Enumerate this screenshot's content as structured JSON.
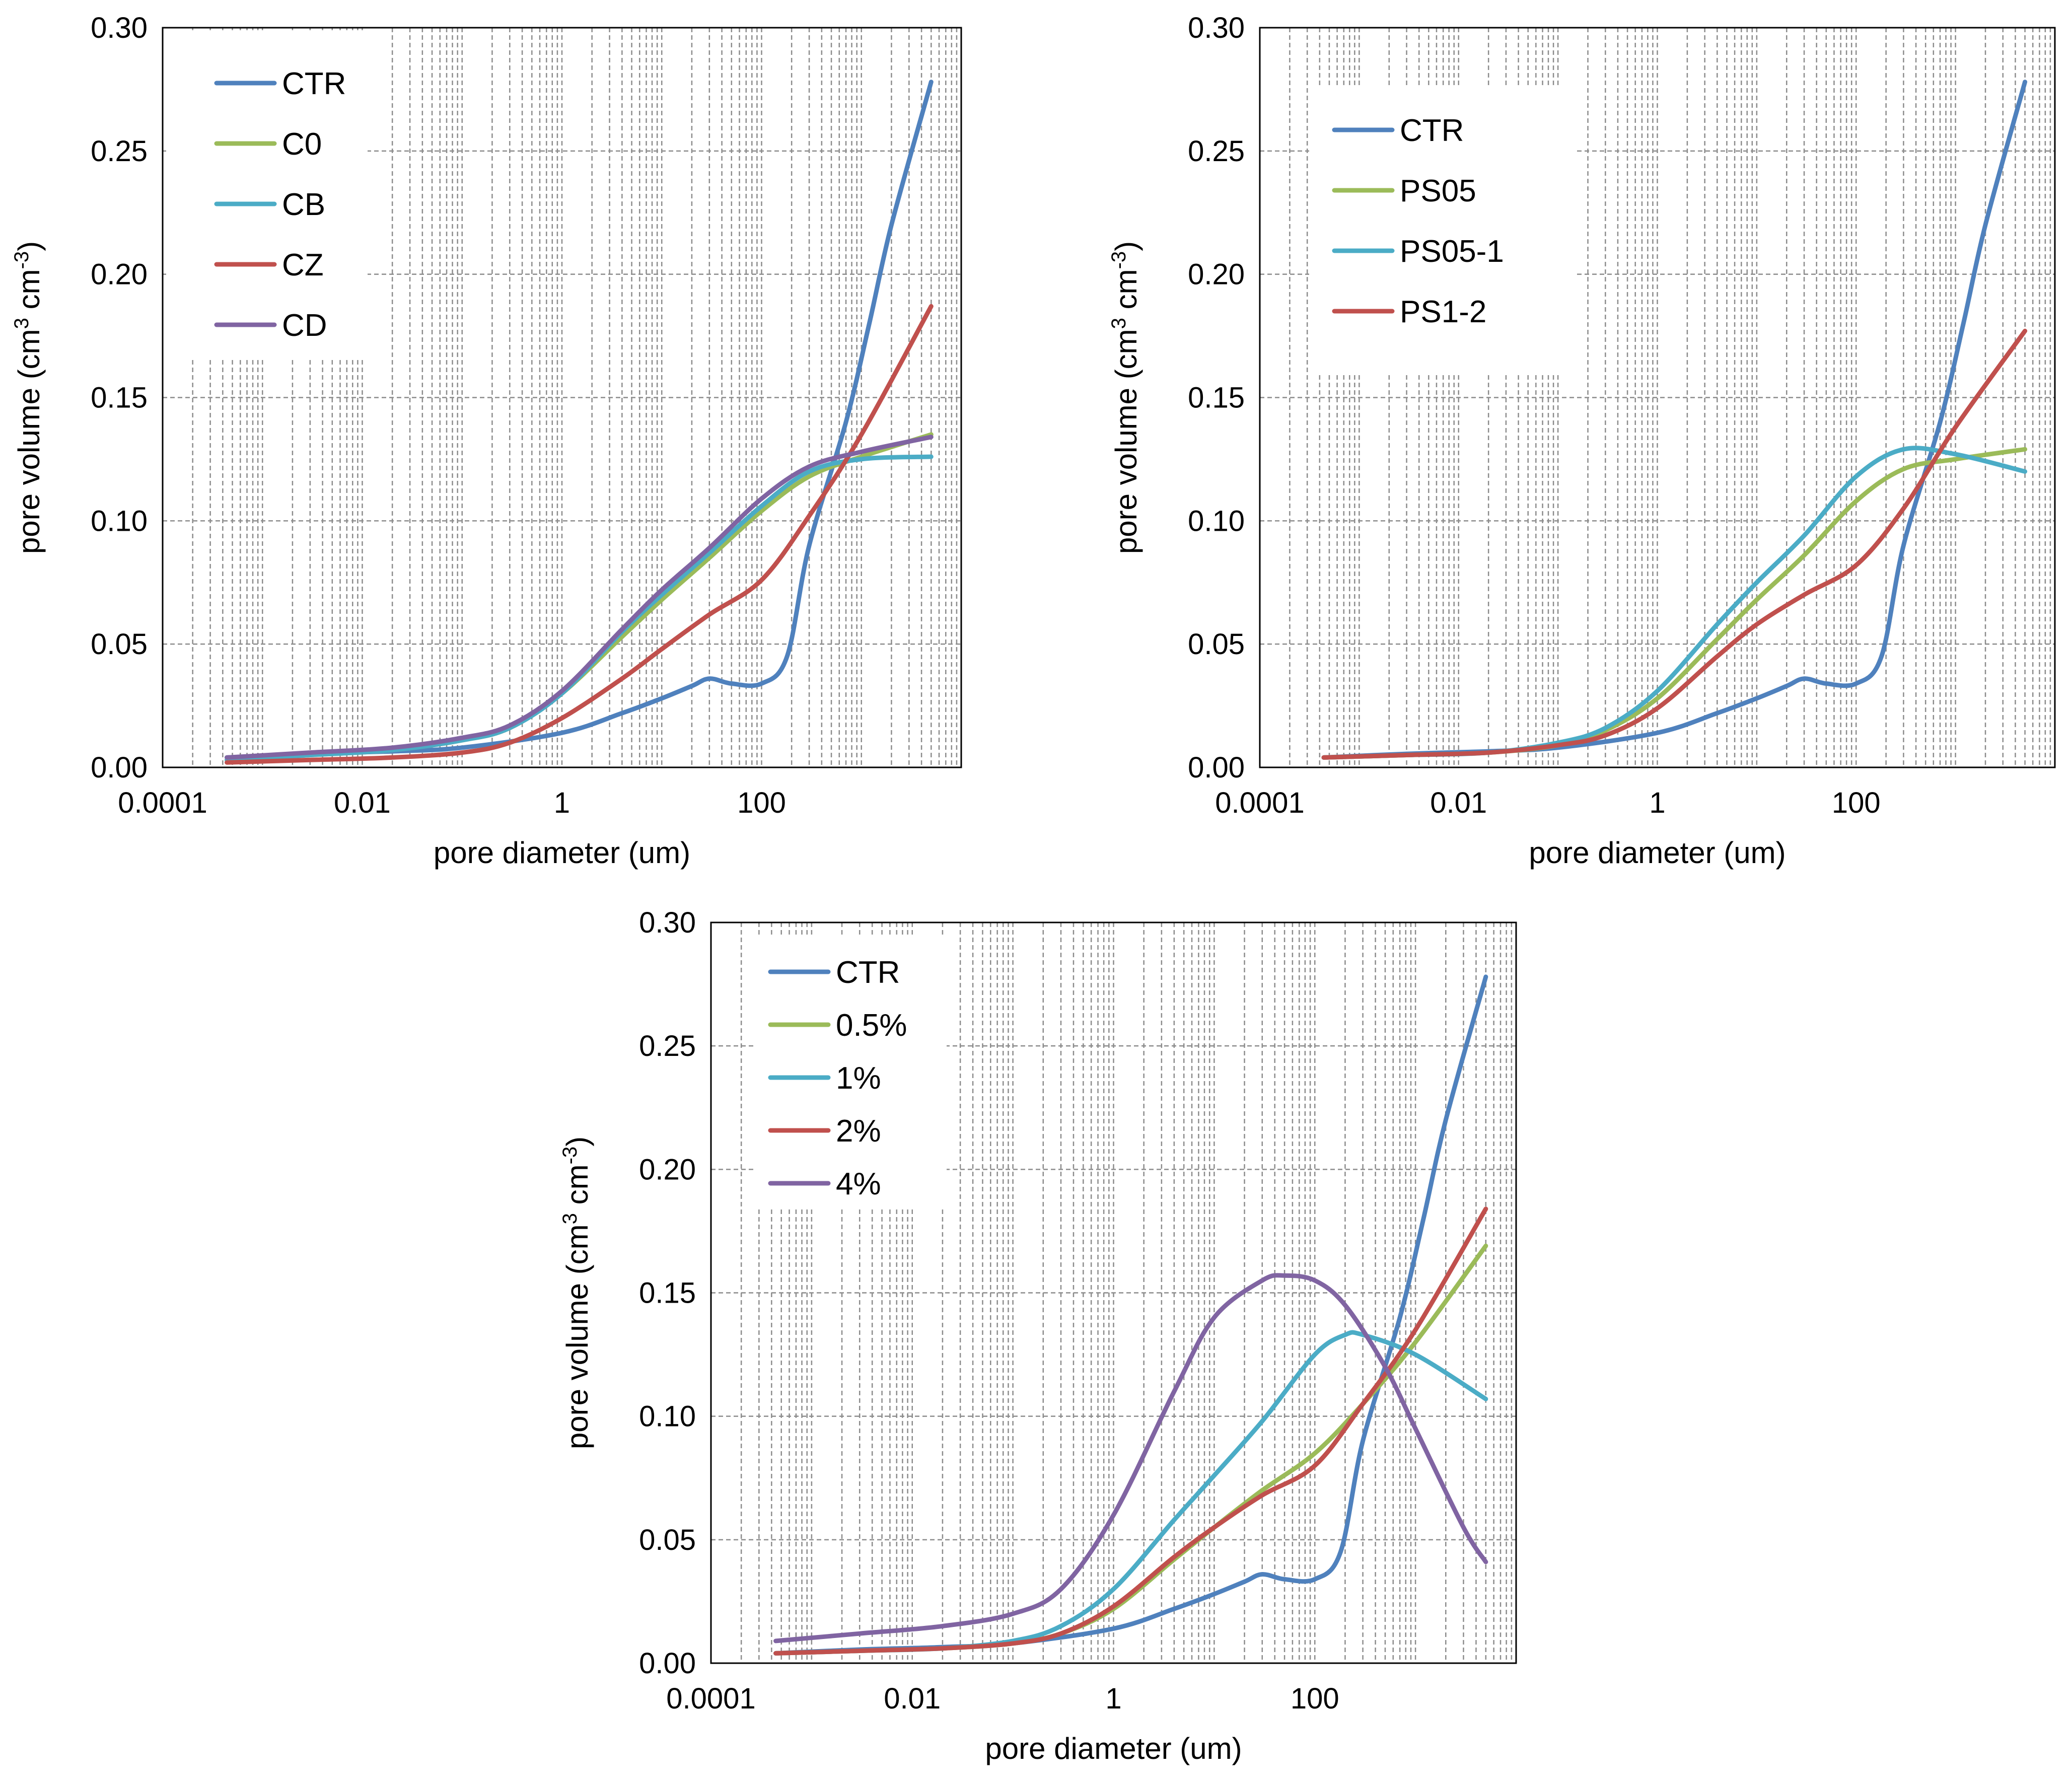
{
  "figure": {
    "background": "#ffffff",
    "gridline_color": "#8c8c8c",
    "axis_color": "#000000"
  },
  "chart_data": [
    {
      "type": "line",
      "xscale": "log",
      "xlabel": "pore diameter (um)",
      "ylabel": "pore volume (cm³ cm⁻³)",
      "ylabel_parts": [
        "pore volume (cm",
        "3",
        " cm",
        "-3",
        ")"
      ],
      "xlim": [
        0.0001,
        10000
      ],
      "ylim": [
        0,
        0.3
      ],
      "x_ticks": [
        "0.0001",
        "0.01",
        "1",
        "100"
      ],
      "x_tick_values": [
        0.0001,
        0.01,
        1,
        100
      ],
      "y_ticks": [
        "0.00",
        "0.05",
        "0.10",
        "0.15",
        "0.20",
        "0.25",
        "0.30"
      ],
      "y_tick_values": [
        0,
        0.05,
        0.1,
        0.15,
        0.2,
        0.25,
        0.3
      ],
      "grid": true,
      "legend_position": "top-left",
      "series": [
        {
          "name": "CTR",
          "color": "#4f81bd",
          "x": [
            0.00044,
            0.003,
            0.02,
            0.1,
            1,
            4,
            10,
            20,
            30,
            50,
            100,
            180,
            300,
            700,
            1200,
            2000,
            5000
          ],
          "y": [
            0.004,
            0.0055,
            0.0065,
            0.008,
            0.014,
            0.022,
            0.028,
            0.033,
            0.036,
            0.034,
            0.034,
            0.045,
            0.09,
            0.14,
            0.18,
            0.22,
            0.278
          ]
        },
        {
          "name": "C0",
          "color": "#9bbb59",
          "x": [
            0.00044,
            0.003,
            0.02,
            0.1,
            0.3,
            1,
            4,
            10,
            30,
            100,
            300,
            1000,
            5000
          ],
          "y": [
            0.003,
            0.005,
            0.007,
            0.011,
            0.016,
            0.03,
            0.053,
            0.068,
            0.085,
            0.104,
            0.118,
            0.126,
            0.135
          ]
        },
        {
          "name": "CB",
          "color": "#4bacc6",
          "x": [
            0.00044,
            0.003,
            0.02,
            0.1,
            0.3,
            1,
            4,
            10,
            30,
            100,
            300,
            1000,
            5000
          ],
          "y": [
            0.003,
            0.005,
            0.007,
            0.011,
            0.016,
            0.03,
            0.055,
            0.07,
            0.087,
            0.106,
            0.12,
            0.125,
            0.126
          ]
        },
        {
          "name": "CZ",
          "color": "#c0504d",
          "x": [
            0.00044,
            0.003,
            0.02,
            0.1,
            0.3,
            1,
            4,
            10,
            30,
            100,
            300,
            1000,
            5000
          ],
          "y": [
            0.002,
            0.003,
            0.004,
            0.006,
            0.01,
            0.02,
            0.036,
            0.048,
            0.062,
            0.076,
            0.102,
            0.135,
            0.187
          ]
        },
        {
          "name": "CD",
          "color": "#8064a2",
          "x": [
            0.00044,
            0.003,
            0.02,
            0.1,
            0.3,
            1,
            4,
            10,
            30,
            100,
            300,
            1000,
            5000
          ],
          "y": [
            0.004,
            0.006,
            0.008,
            0.012,
            0.017,
            0.031,
            0.056,
            0.072,
            0.089,
            0.109,
            0.122,
            0.128,
            0.134
          ]
        }
      ]
    },
    {
      "type": "line",
      "xscale": "log",
      "xlabel": "pore diameter (um)",
      "ylabel": "pore volume (cm³ cm⁻³)",
      "ylabel_parts": [
        "pore volume (cm",
        "3",
        " cm",
        "-3",
        ")"
      ],
      "xlim": [
        0.0001,
        10000
      ],
      "ylim": [
        0,
        0.3
      ],
      "x_ticks": [
        "0.0001",
        "0.01",
        "1",
        "100"
      ],
      "x_tick_values": [
        0.0001,
        0.01,
        1,
        100
      ],
      "y_ticks": [
        "0.00",
        "0.05",
        "0.10",
        "0.15",
        "0.20",
        "0.25",
        "0.30"
      ],
      "y_tick_values": [
        0,
        0.05,
        0.1,
        0.15,
        0.2,
        0.25,
        0.3
      ],
      "grid": true,
      "legend_position": "top-left",
      "series": [
        {
          "name": "CTR",
          "color": "#4f81bd",
          "x": [
            0.00044,
            0.003,
            0.02,
            0.1,
            1,
            4,
            10,
            20,
            30,
            50,
            100,
            180,
            300,
            700,
            1200,
            2000,
            5000
          ],
          "y": [
            0.004,
            0.0055,
            0.0065,
            0.008,
            0.014,
            0.022,
            0.028,
            0.033,
            0.036,
            0.034,
            0.034,
            0.045,
            0.09,
            0.14,
            0.18,
            0.22,
            0.278
          ]
        },
        {
          "name": "PS05",
          "color": "#9bbb59",
          "x": [
            0.00044,
            0.003,
            0.02,
            0.1,
            0.3,
            1,
            4,
            10,
            30,
            100,
            300,
            1000,
            5000
          ],
          "y": [
            0.004,
            0.005,
            0.006,
            0.009,
            0.015,
            0.028,
            0.052,
            0.068,
            0.086,
            0.108,
            0.121,
            0.125,
            0.129
          ]
        },
        {
          "name": "PS05-1",
          "color": "#4bacc6",
          "x": [
            0.00044,
            0.003,
            0.02,
            0.1,
            0.3,
            1,
            4,
            10,
            30,
            100,
            300,
            1000,
            5000
          ],
          "y": [
            0.004,
            0.005,
            0.006,
            0.01,
            0.016,
            0.031,
            0.058,
            0.075,
            0.094,
            0.118,
            0.129,
            0.127,
            0.12
          ]
        },
        {
          "name": "PS1-2",
          "color": "#c0504d",
          "x": [
            0.00044,
            0.003,
            0.02,
            0.1,
            0.3,
            1,
            4,
            10,
            30,
            100,
            300,
            1000,
            5000
          ],
          "y": [
            0.004,
            0.005,
            0.006,
            0.009,
            0.013,
            0.024,
            0.045,
            0.058,
            0.07,
            0.082,
            0.105,
            0.138,
            0.177
          ]
        }
      ]
    },
    {
      "type": "line",
      "xscale": "log",
      "xlabel": "pore diameter (um)",
      "ylabel": "pore volume (cm³ cm⁻³)",
      "ylabel_parts": [
        "pore volume (cm",
        "3",
        " cm",
        "-3",
        ")"
      ],
      "xlim": [
        0.0001,
        10000
      ],
      "ylim": [
        0,
        0.3
      ],
      "x_ticks": [
        "0.0001",
        "0.01",
        "1",
        "100"
      ],
      "x_tick_values": [
        0.0001,
        0.01,
        1,
        100
      ],
      "y_ticks": [
        "0.00",
        "0.05",
        "0.10",
        "0.15",
        "0.20",
        "0.25",
        "0.30"
      ],
      "y_tick_values": [
        0,
        0.05,
        0.1,
        0.15,
        0.2,
        0.25,
        0.3
      ],
      "grid": true,
      "legend_position": "top-left",
      "series": [
        {
          "name": "CTR",
          "color": "#4f81bd",
          "x": [
            0.00044,
            0.003,
            0.02,
            0.1,
            1,
            4,
            10,
            20,
            30,
            50,
            100,
            180,
            300,
            700,
            1200,
            2000,
            5000
          ],
          "y": [
            0.004,
            0.0055,
            0.0065,
            0.008,
            0.014,
            0.022,
            0.028,
            0.033,
            0.036,
            0.034,
            0.034,
            0.045,
            0.09,
            0.14,
            0.18,
            0.22,
            0.278
          ]
        },
        {
          "name": "0.5%",
          "color": "#9bbb59",
          "x": [
            0.00044,
            0.003,
            0.02,
            0.1,
            0.3,
            1,
            4,
            10,
            30,
            100,
            300,
            1000,
            5000
          ],
          "y": [
            0.004,
            0.005,
            0.006,
            0.008,
            0.012,
            0.022,
            0.042,
            0.055,
            0.07,
            0.085,
            0.105,
            0.13,
            0.169
          ]
        },
        {
          "name": "1%",
          "color": "#4bacc6",
          "x": [
            0.00044,
            0.003,
            0.02,
            0.1,
            0.3,
            1,
            4,
            10,
            30,
            100,
            200,
            300,
            1000,
            5000
          ],
          "y": [
            0.004,
            0.005,
            0.006,
            0.009,
            0.015,
            0.03,
            0.058,
            0.076,
            0.098,
            0.125,
            0.133,
            0.133,
            0.125,
            0.107
          ]
        },
        {
          "name": "2%",
          "color": "#c0504d",
          "x": [
            0.00044,
            0.003,
            0.02,
            0.1,
            0.3,
            1,
            4,
            10,
            30,
            100,
            300,
            1000,
            5000
          ],
          "y": [
            0.004,
            0.005,
            0.006,
            0.008,
            0.012,
            0.023,
            0.043,
            0.055,
            0.068,
            0.08,
            0.105,
            0.135,
            0.184
          ]
        },
        {
          "name": "4%",
          "color": "#8064a2",
          "x": [
            0.00044,
            0.003,
            0.02,
            0.1,
            0.3,
            1,
            4,
            10,
            30,
            50,
            100,
            200,
            500,
            1000,
            3000,
            5000
          ],
          "y": [
            0.009,
            0.012,
            0.015,
            0.02,
            0.03,
            0.06,
            0.11,
            0.14,
            0.155,
            0.157,
            0.155,
            0.145,
            0.12,
            0.095,
            0.055,
            0.041
          ]
        }
      ]
    }
  ]
}
